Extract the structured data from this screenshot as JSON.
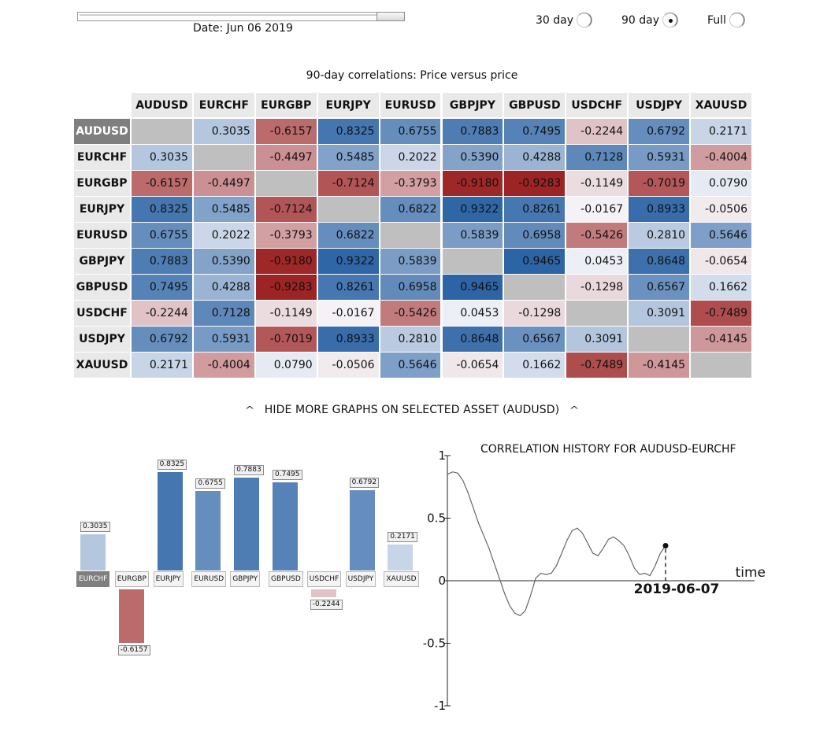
{
  "slider": {
    "position": 1.0
  },
  "date_label": "Date: Jun 06 2019",
  "radios": [
    {
      "label": "30 day",
      "checked": false
    },
    {
      "label": "90 day",
      "checked": true
    },
    {
      "label": "Full",
      "checked": false
    }
  ],
  "matrix": {
    "title": "90-day correlations: Price versus price",
    "selected_row": "AUDUSD",
    "assets": [
      "AUDUSD",
      "EURCHF",
      "EURGBP",
      "EURJPY",
      "EURUSD",
      "GBPJPY",
      "GBPUSD",
      "USDCHF",
      "USDJPY",
      "XAUUSD"
    ],
    "cells": [
      [
        "",
        "0.3035",
        "-0.6157",
        "0.8325",
        "0.6755",
        "0.7883",
        "0.7495",
        "-0.2244",
        "0.6792",
        "0.2171"
      ],
      [
        "0.3035",
        "",
        "-0.4497",
        "0.5485",
        "0.2022",
        "0.5390",
        "0.4288",
        "0.7128",
        "0.5931",
        "-0.4004"
      ],
      [
        "-0.6157",
        "-0.4497",
        "",
        "-0.7124",
        "-0.3793",
        "-0.9180",
        "-0.9283",
        "-0.1149",
        "-0.7019",
        "0.0790"
      ],
      [
        "0.8325",
        "0.5485",
        "-0.7124",
        "",
        "0.6822",
        "0.9322",
        "0.8261",
        "-0.0167",
        "0.8933",
        "-0.0506"
      ],
      [
        "0.6755",
        "0.2022",
        "-0.3793",
        "0.6822",
        "",
        "0.5839",
        "0.6958",
        "-0.5426",
        "0.2810",
        "0.5646"
      ],
      [
        "0.7883",
        "0.5390",
        "-0.9180",
        "0.9322",
        "0.5839",
        "",
        "0.9465",
        "0.0453",
        "0.8648",
        "-0.0654"
      ],
      [
        "0.7495",
        "0.4288",
        "-0.9283",
        "0.8261",
        "0.6958",
        "0.9465",
        "",
        "-0.1298",
        "0.6567",
        "0.1662"
      ],
      [
        "-0.2244",
        "0.7128",
        "-0.1149",
        "-0.0167",
        "-0.5426",
        "0.0453",
        "-0.1298",
        "",
        "0.3091",
        "-0.7489"
      ],
      [
        "0.6792",
        "0.5931",
        "-0.7019",
        "0.8933",
        "0.2810",
        "0.8648",
        "0.6567",
        "0.3091",
        "",
        "-0.4145"
      ],
      [
        "0.2171",
        "-0.4004",
        "0.0790",
        "-0.0506",
        "0.5646",
        "-0.0654",
        "0.1662",
        "-0.7489",
        "-0.4145",
        ""
      ]
    ]
  },
  "toggle_link": "HIDE MORE GRAPHS ON SELECTED ASSET (AUDUSD)",
  "chart_data": [
    {
      "type": "bar",
      "selected_category": "EURCHF",
      "categories": [
        "EURCHF",
        "EURGBP",
        "EURJPY",
        "EURUSD",
        "GBPJPY",
        "GBPUSD",
        "USDCHF",
        "USDJPY",
        "XAUUSD"
      ],
      "values": [
        0.3035,
        -0.6157,
        0.8325,
        0.6755,
        0.7883,
        0.7495,
        -0.2244,
        0.6792,
        0.2171
      ],
      "value_labels": [
        "0.3035",
        "-0.6157",
        "0.8325",
        "0.6755",
        "0.7883",
        "0.7495",
        "-0.2244",
        "0.6792",
        "0.2171"
      ],
      "ylim": [
        -1,
        1
      ]
    },
    {
      "type": "line",
      "title": "CORRELATION HISTORY FOR AUDUSD-EURCHF",
      "xlabel": "time",
      "ylim": [
        -1,
        1
      ],
      "yticks": [
        "1",
        "0.5",
        "0",
        "-0.5",
        "-1"
      ],
      "end_label": "2019-06-07",
      "values": [
        0.85,
        0.87,
        0.86,
        0.8,
        0.7,
        0.58,
        0.46,
        0.36,
        0.26,
        0.14,
        0.02,
        -0.1,
        -0.2,
        -0.26,
        -0.28,
        -0.24,
        -0.12,
        0.02,
        0.06,
        0.05,
        0.06,
        0.12,
        0.22,
        0.32,
        0.4,
        0.42,
        0.38,
        0.3,
        0.22,
        0.2,
        0.26,
        0.33,
        0.35,
        0.32,
        0.28,
        0.2,
        0.1,
        0.05,
        0.06,
        0.04,
        0.12,
        0.22,
        0.28
      ]
    }
  ],
  "colors": {
    "header_bg": "#e9e9e9",
    "selected_bg": "#7f7f7f",
    "diag_bg": "#bfbfbf",
    "positive": "#2e6aae",
    "negative": "#9e1d1d"
  }
}
